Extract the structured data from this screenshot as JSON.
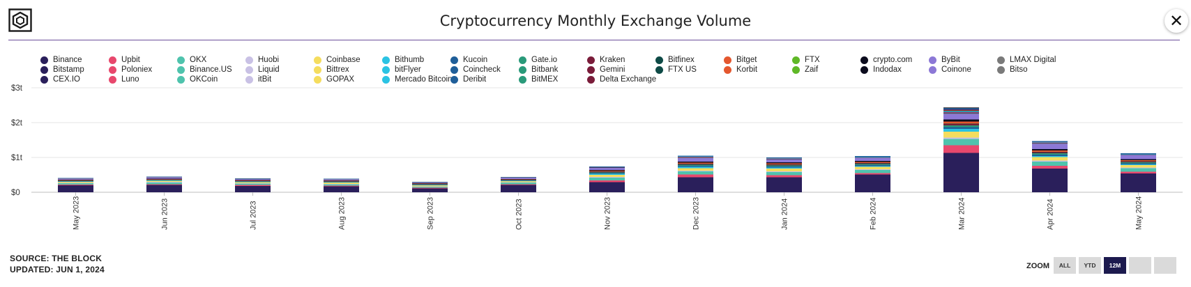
{
  "header": {
    "title": "Cryptocurrency Monthly Exchange Volume",
    "close_icon": "close-icon",
    "logo_icon": "cube-logo-icon"
  },
  "footer": {
    "source": "SOURCE: THE BLOCK",
    "updated": "UPDATED: JUN 1, 2024"
  },
  "zoom": {
    "label": "ZOOM",
    "buttons": [
      {
        "label": "ALL",
        "active": false
      },
      {
        "label": "YTD",
        "active": false
      },
      {
        "label": "12M",
        "active": true
      },
      {
        "label": "",
        "active": false
      },
      {
        "label": "",
        "active": false
      }
    ]
  },
  "chart_data": {
    "type": "bar",
    "stacked": true,
    "title": "Cryptocurrency Monthly Exchange Volume",
    "xlabel": "",
    "ylabel": "",
    "ylim": [
      0,
      3000000000000
    ],
    "y_ticks": [
      "$0",
      "$1t",
      "$2t",
      "$3t"
    ],
    "grid": true,
    "legend_position": "top",
    "categories": [
      "May 2023",
      "Jun 2023",
      "Jul 2023",
      "Aug 2023",
      "Sep 2023",
      "Oct 2023",
      "Nov 2023",
      "Dec 2023",
      "Jan 2024",
      "Feb 2024",
      "Mar 2024",
      "Apr 2024",
      "May 2024"
    ],
    "series": [
      {
        "name": "Binance",
        "color": "#2a1f5b",
        "values": [
          0.2,
          0.21,
          0.18,
          0.17,
          0.11,
          0.21,
          0.29,
          0.43,
          0.43,
          0.51,
          1.13,
          0.68,
          0.54
        ]
      },
      {
        "name": "Upbit",
        "color": "#e8486d",
        "values": [
          0.02,
          0.02,
          0.03,
          0.02,
          0.02,
          0.02,
          0.05,
          0.08,
          0.06,
          0.04,
          0.22,
          0.08,
          0.05
        ]
      },
      {
        "name": "OKX",
        "color": "#4fc3ad",
        "values": [
          0.04,
          0.05,
          0.04,
          0.04,
          0.03,
          0.05,
          0.08,
          0.09,
          0.09,
          0.09,
          0.18,
          0.12,
          0.1
        ]
      },
      {
        "name": "Huobi",
        "color": "#c9c1e5",
        "values": [
          0.01,
          0.02,
          0.01,
          0.01,
          0.01,
          0.01,
          0.02,
          0.02,
          0.02,
          0.02,
          0.04,
          0.03,
          0.02
        ]
      },
      {
        "name": "Coinbase",
        "color": "#f5dd5e",
        "values": [
          0.03,
          0.03,
          0.03,
          0.04,
          0.03,
          0.03,
          0.06,
          0.07,
          0.08,
          0.07,
          0.17,
          0.1,
          0.07
        ]
      },
      {
        "name": "Bithumb",
        "color": "#2bc3e3",
        "values": [
          0.01,
          0.01,
          0.01,
          0.01,
          0.01,
          0.01,
          0.03,
          0.04,
          0.03,
          0.02,
          0.08,
          0.03,
          0.02
        ]
      },
      {
        "name": "Kucoin",
        "color": "#1f5e99",
        "values": [
          0.01,
          0.01,
          0.01,
          0.01,
          0.01,
          0.01,
          0.02,
          0.03,
          0.03,
          0.03,
          0.05,
          0.04,
          0.03
        ]
      },
      {
        "name": "Gate.io",
        "color": "#2a9a7a",
        "values": [
          0.01,
          0.01,
          0.01,
          0.01,
          0.01,
          0.01,
          0.02,
          0.03,
          0.03,
          0.03,
          0.05,
          0.04,
          0.03
        ]
      },
      {
        "name": "Kraken",
        "color": "#7a1c3a",
        "values": [
          0.01,
          0.01,
          0.01,
          0.01,
          0.01,
          0.01,
          0.02,
          0.02,
          0.02,
          0.02,
          0.04,
          0.03,
          0.02
        ]
      },
      {
        "name": "Bitfinex",
        "color": "#0e4a46",
        "values": [
          0.0,
          0.0,
          0.0,
          0.0,
          0.0,
          0.0,
          0.01,
          0.01,
          0.01,
          0.01,
          0.01,
          0.01,
          0.01
        ]
      },
      {
        "name": "Bitget",
        "color": "#e4572e",
        "values": [
          0.01,
          0.01,
          0.01,
          0.01,
          0.01,
          0.01,
          0.02,
          0.03,
          0.03,
          0.03,
          0.06,
          0.04,
          0.03
        ]
      },
      {
        "name": "FTX",
        "color": "#5fb827",
        "values": [
          0,
          0,
          0,
          0,
          0,
          0,
          0,
          0,
          0,
          0,
          0,
          0,
          0
        ]
      },
      {
        "name": "crypto.com",
        "color": "#0c0c1e",
        "values": [
          0.01,
          0.01,
          0.01,
          0.01,
          0.01,
          0.01,
          0.02,
          0.03,
          0.03,
          0.03,
          0.06,
          0.04,
          0.03
        ]
      },
      {
        "name": "ByBit",
        "color": "#8c78d6",
        "values": [
          0.03,
          0.04,
          0.03,
          0.03,
          0.02,
          0.04,
          0.06,
          0.1,
          0.08,
          0.09,
          0.16,
          0.15,
          0.12
        ]
      },
      {
        "name": "LMAX Digital",
        "color": "#7a7a7a",
        "values": [
          0.01,
          0.01,
          0.01,
          0.01,
          0.01,
          0.01,
          0.01,
          0.02,
          0.01,
          0.01,
          0.02,
          0.02,
          0.01
        ]
      },
      {
        "name": "Bitstamp",
        "color": "#2a1f5b",
        "values": [
          0.0,
          0.0,
          0.0,
          0.0,
          0.0,
          0.0,
          0.01,
          0.01,
          0.01,
          0.01,
          0.02,
          0.01,
          0.01
        ]
      },
      {
        "name": "Poloniex",
        "color": "#e8486d",
        "values": [
          0.0,
          0.0,
          0.0,
          0.0,
          0.0,
          0.0,
          0.0,
          0.01,
          0.01,
          0.0,
          0.01,
          0.01,
          0.0
        ]
      },
      {
        "name": "Binance.US",
        "color": "#4fc3ad",
        "values": [
          0.0,
          0.0,
          0.0,
          0.0,
          0.0,
          0.0,
          0.0,
          0.0,
          0.0,
          0.0,
          0.0,
          0.0,
          0.0
        ]
      },
      {
        "name": "Liquid",
        "color": "#c9c1e5",
        "values": [
          0,
          0,
          0,
          0,
          0,
          0,
          0,
          0,
          0,
          0,
          0,
          0,
          0
        ]
      },
      {
        "name": "Bittrex",
        "color": "#f5dd5e",
        "values": [
          0,
          0,
          0,
          0,
          0,
          0,
          0,
          0,
          0,
          0,
          0,
          0,
          0
        ]
      },
      {
        "name": "bitFlyer",
        "color": "#2bc3e3",
        "values": [
          0.0,
          0.0,
          0.0,
          0.0,
          0.0,
          0.0,
          0.0,
          0.01,
          0.01,
          0.01,
          0.02,
          0.01,
          0.01
        ]
      },
      {
        "name": "Coincheck",
        "color": "#1f5e99",
        "values": [
          0.0,
          0.0,
          0.0,
          0.0,
          0.0,
          0.0,
          0.0,
          0.0,
          0.0,
          0.0,
          0.01,
          0.0,
          0.0
        ]
      },
      {
        "name": "Bitbank",
        "color": "#2a9a7a",
        "values": [
          0.0,
          0.0,
          0.0,
          0.0,
          0.0,
          0.0,
          0.0,
          0.0,
          0.0,
          0.0,
          0.01,
          0.0,
          0.0
        ]
      },
      {
        "name": "Gemini",
        "color": "#7a1c3a",
        "values": [
          0.0,
          0.0,
          0.0,
          0.0,
          0.0,
          0.0,
          0.0,
          0.0,
          0.0,
          0.0,
          0.01,
          0.0,
          0.0
        ]
      },
      {
        "name": "FTX US",
        "color": "#0e4a46",
        "values": [
          0,
          0,
          0,
          0,
          0,
          0,
          0,
          0,
          0,
          0,
          0,
          0,
          0
        ]
      },
      {
        "name": "Korbit",
        "color": "#e4572e",
        "values": [
          0.0,
          0.0,
          0.0,
          0.0,
          0.0,
          0.0,
          0.0,
          0.0,
          0.0,
          0.0,
          0.01,
          0.0,
          0.0
        ]
      },
      {
        "name": "Zaif",
        "color": "#5fb827",
        "values": [
          0,
          0,
          0,
          0,
          0,
          0,
          0,
          0,
          0,
          0,
          0,
          0,
          0
        ]
      },
      {
        "name": "Indodax",
        "color": "#0c0c1e",
        "values": [
          0.0,
          0.0,
          0.0,
          0.0,
          0.0,
          0.0,
          0.0,
          0.0,
          0.0,
          0.0,
          0.01,
          0.0,
          0.0
        ]
      },
      {
        "name": "Coinone",
        "color": "#8c78d6",
        "values": [
          0.0,
          0.0,
          0.0,
          0.0,
          0.0,
          0.0,
          0.0,
          0.0,
          0.0,
          0.0,
          0.01,
          0.0,
          0.0
        ]
      },
      {
        "name": "Bitso",
        "color": "#7a7a7a",
        "values": [
          0.0,
          0.0,
          0.0,
          0.0,
          0.0,
          0.0,
          0.0,
          0.0,
          0.0,
          0.0,
          0.0,
          0.0,
          0.0
        ]
      },
      {
        "name": "CEX.IO",
        "color": "#2a1f5b",
        "values": [
          0.0,
          0.0,
          0.0,
          0.0,
          0.0,
          0.0,
          0.0,
          0.0,
          0.0,
          0.0,
          0.01,
          0.0,
          0.0
        ]
      },
      {
        "name": "Luno",
        "color": "#e8486d",
        "values": [
          0,
          0,
          0,
          0,
          0,
          0,
          0,
          0,
          0,
          0,
          0,
          0,
          0
        ]
      },
      {
        "name": "OKCoin",
        "color": "#4fc3ad",
        "values": [
          0,
          0,
          0,
          0,
          0,
          0,
          0,
          0,
          0,
          0,
          0,
          0,
          0
        ]
      },
      {
        "name": "itBit",
        "color": "#c9c1e5",
        "values": [
          0,
          0,
          0,
          0,
          0,
          0,
          0,
          0,
          0,
          0,
          0,
          0,
          0
        ]
      },
      {
        "name": "GOPAX",
        "color": "#f5dd5e",
        "values": [
          0,
          0,
          0,
          0,
          0,
          0,
          0,
          0,
          0,
          0,
          0,
          0,
          0
        ]
      },
      {
        "name": "Mercado Bitcoin",
        "color": "#2bc3e3",
        "values": [
          0,
          0,
          0,
          0,
          0,
          0,
          0,
          0,
          0,
          0,
          0,
          0,
          0
        ]
      },
      {
        "name": "Deribit",
        "color": "#1f5e99",
        "values": [
          0.01,
          0.01,
          0.01,
          0.01,
          0.01,
          0.01,
          0.02,
          0.02,
          0.02,
          0.02,
          0.03,
          0.03,
          0.02
        ]
      },
      {
        "name": "BitMEX",
        "color": "#2a9a7a",
        "values": [
          0.0,
          0.0,
          0.0,
          0.0,
          0.0,
          0.0,
          0.0,
          0.0,
          0.0,
          0.0,
          0.01,
          0.0,
          0.0
        ]
      },
      {
        "name": "Delta Exchange",
        "color": "#7a1c3a",
        "values": [
          0.0,
          0.0,
          0.0,
          0.0,
          0.0,
          0.0,
          0.0,
          0.0,
          0.0,
          0.0,
          0.01,
          0.0,
          0.0
        ]
      }
    ],
    "values_unit": "trillions USD"
  }
}
